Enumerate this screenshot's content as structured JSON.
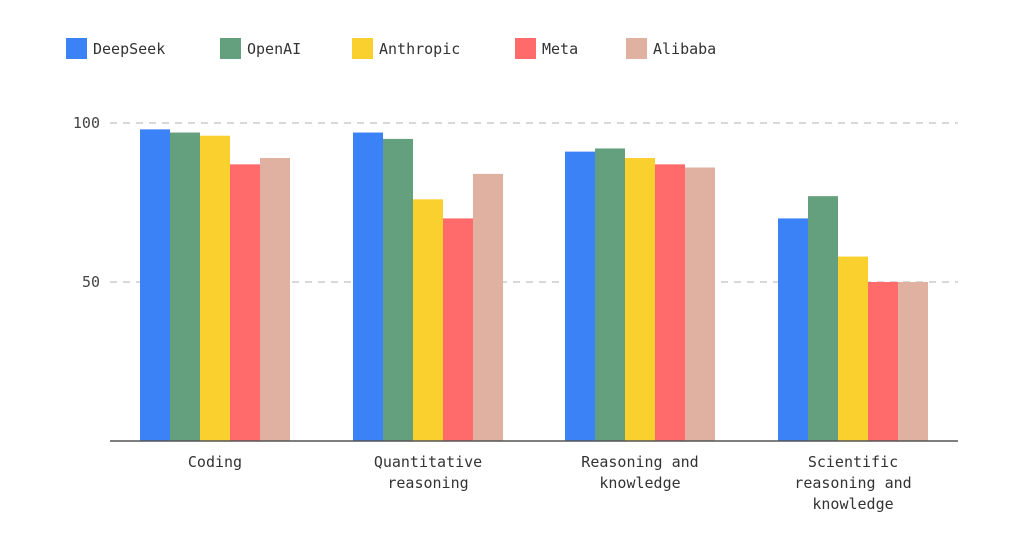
{
  "chart_data": {
    "type": "bar",
    "categories": [
      "Coding",
      "Quantitative reasoning",
      "Reasoning and knowledge",
      "Scientific reasoning and knowledge"
    ],
    "category_lines": [
      [
        "Coding"
      ],
      [
        "Quantitative",
        "reasoning"
      ],
      [
        "Reasoning and",
        "knowledge"
      ],
      [
        "Scientific",
        "reasoning and",
        "knowledge"
      ]
    ],
    "series": [
      {
        "name": "DeepSeek",
        "color": "#3b82f6",
        "values": [
          98,
          97,
          91,
          70
        ]
      },
      {
        "name": "OpenAI",
        "color": "#65a07e",
        "values": [
          97,
          95,
          92,
          77
        ]
      },
      {
        "name": "Anthropic",
        "color": "#f9d02e",
        "values": [
          96,
          76,
          89,
          58
        ]
      },
      {
        "name": "Meta",
        "color": "#ff6b6b",
        "values": [
          87,
          70,
          87,
          50
        ]
      },
      {
        "name": "Alibaba",
        "color": "#e0b0a0",
        "values": [
          89,
          84,
          86,
          50
        ]
      }
    ],
    "yticks": [
      50,
      100
    ],
    "ylim": [
      0,
      100
    ],
    "grid": true,
    "legend": "top-left",
    "title": "",
    "xlabel": "",
    "ylabel": ""
  }
}
